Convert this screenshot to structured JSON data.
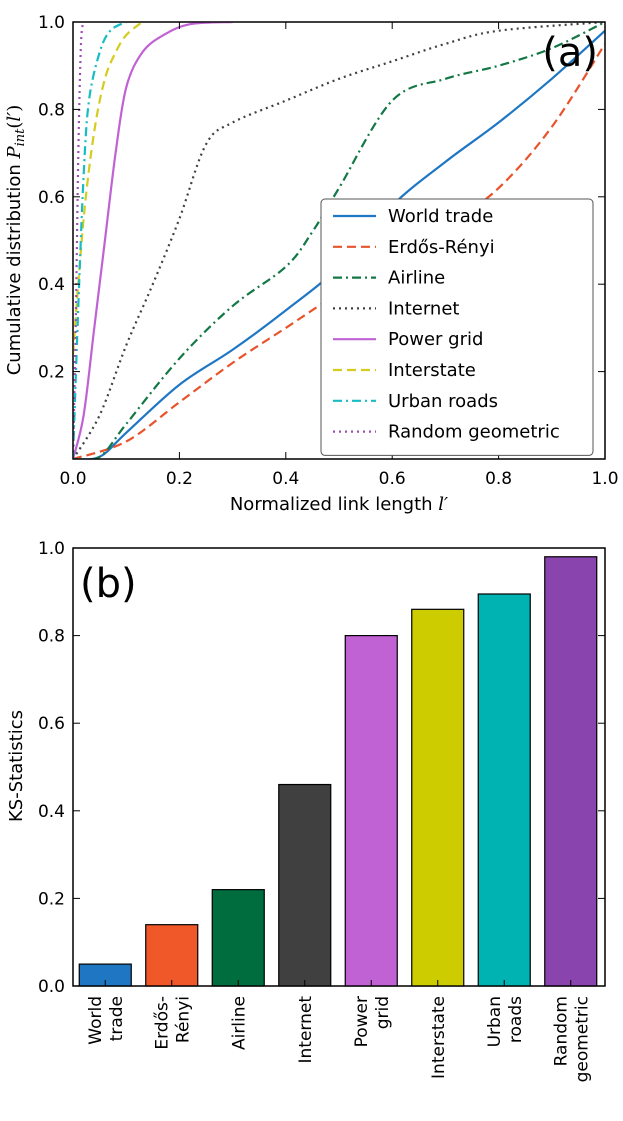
{
  "chart_data": [
    {
      "type": "line",
      "panel_label": "(a)",
      "xlabel": "Normalized link length l′",
      "ylabel": "Cumulative distribution P_int(l′)",
      "xlim": [
        0.0,
        1.0
      ],
      "ylim": [
        0.0,
        1.0
      ],
      "xticks": [
        "0.0",
        "0.2",
        "0.4",
        "0.6",
        "0.8",
        "1.0"
      ],
      "yticks": [
        "0.2",
        "0.4",
        "0.6",
        "0.8",
        "1.0"
      ],
      "grid": false,
      "legend_position": "lower-right",
      "series": [
        {
          "name": "World trade",
          "color": "#1f77c4",
          "dash": "solid",
          "points": [
            [
              0,
              0
            ],
            [
              0.05,
              0.005
            ],
            [
              0.1,
              0.06
            ],
            [
              0.2,
              0.17
            ],
            [
              0.3,
              0.25
            ],
            [
              0.4,
              0.34
            ],
            [
              0.5,
              0.44
            ],
            [
              0.6,
              0.58
            ],
            [
              0.7,
              0.68
            ],
            [
              0.8,
              0.77
            ],
            [
              0.9,
              0.87
            ],
            [
              1.0,
              0.98
            ]
          ]
        },
        {
          "name": "Erdős-Rényi",
          "color": "#e8532b",
          "dash": "dashed",
          "points": [
            [
              0,
              0
            ],
            [
              0.1,
              0.04
            ],
            [
              0.2,
              0.13
            ],
            [
              0.3,
              0.22
            ],
            [
              0.4,
              0.3
            ],
            [
              0.5,
              0.38
            ],
            [
              0.6,
              0.45
            ],
            [
              0.7,
              0.53
            ],
            [
              0.8,
              0.62
            ],
            [
              0.9,
              0.76
            ],
            [
              1.0,
              0.95
            ]
          ]
        },
        {
          "name": "Airline",
          "color": "#137845",
          "dash": "dashdot",
          "points": [
            [
              0,
              0
            ],
            [
              0.05,
              0.005
            ],
            [
              0.1,
              0.08
            ],
            [
              0.2,
              0.23
            ],
            [
              0.3,
              0.35
            ],
            [
              0.4,
              0.44
            ],
            [
              0.45,
              0.52
            ],
            [
              0.5,
              0.62
            ],
            [
              0.6,
              0.82
            ],
            [
              0.7,
              0.87
            ],
            [
              0.8,
              0.9
            ],
            [
              0.9,
              0.94
            ],
            [
              1.0,
              1.0
            ]
          ]
        },
        {
          "name": "Internet",
          "color": "#404040",
          "dash": "dotted",
          "points": [
            [
              0,
              0
            ],
            [
              0.05,
              0.1
            ],
            [
              0.1,
              0.26
            ],
            [
              0.15,
              0.4
            ],
            [
              0.2,
              0.55
            ],
            [
              0.25,
              0.72
            ],
            [
              0.3,
              0.77
            ],
            [
              0.4,
              0.82
            ],
            [
              0.5,
              0.87
            ],
            [
              0.6,
              0.91
            ],
            [
              0.7,
              0.95
            ],
            [
              0.8,
              0.98
            ],
            [
              1.0,
              1.0
            ]
          ]
        },
        {
          "name": "Power grid",
          "color": "#c062d4",
          "dash": "solid",
          "points": [
            [
              0,
              0
            ],
            [
              0.02,
              0.1
            ],
            [
              0.04,
              0.3
            ],
            [
              0.06,
              0.5
            ],
            [
              0.08,
              0.7
            ],
            [
              0.1,
              0.85
            ],
            [
              0.13,
              0.93
            ],
            [
              0.17,
              0.97
            ],
            [
              0.22,
              0.995
            ],
            [
              0.3,
              1.0
            ]
          ]
        },
        {
          "name": "Interstate",
          "color": "#d4cc1f",
          "dash": "dashed",
          "points": [
            [
              0,
              0.24
            ],
            [
              0.02,
              0.55
            ],
            [
              0.04,
              0.75
            ],
            [
              0.06,
              0.87
            ],
            [
              0.08,
              0.93
            ],
            [
              0.1,
              0.97
            ],
            [
              0.13,
              1.0
            ]
          ]
        },
        {
          "name": "Urban roads",
          "color": "#17bcc4",
          "dash": "dashdot",
          "points": [
            [
              0,
              0.0
            ],
            [
              0.01,
              0.35
            ],
            [
              0.02,
              0.65
            ],
            [
              0.03,
              0.82
            ],
            [
              0.05,
              0.93
            ],
            [
              0.07,
              0.98
            ],
            [
              0.1,
              1.0
            ]
          ]
        },
        {
          "name": "Random geometric",
          "color": "#9a4fb4",
          "dash": "dotted",
          "points": [
            [
              0,
              0
            ],
            [
              0.005,
              0.3
            ],
            [
              0.01,
              0.7
            ],
            [
              0.015,
              0.95
            ],
            [
              0.02,
              1.0
            ]
          ]
        }
      ]
    },
    {
      "type": "bar",
      "panel_label": "(b)",
      "ylabel": "KS-Statistics",
      "ylim": [
        0.0,
        1.0
      ],
      "yticks": [
        "0.0",
        "0.2",
        "0.4",
        "0.6",
        "0.8",
        "1.0"
      ],
      "categories": [
        [
          "World",
          "trade"
        ],
        [
          "Erdős-",
          "Rényi"
        ],
        [
          "Airline"
        ],
        [
          "Internet"
        ],
        [
          "Power",
          "grid"
        ],
        [
          "Interstate"
        ],
        [
          "Urban",
          "roads"
        ],
        [
          "Random",
          "geometric"
        ]
      ],
      "values": [
        0.05,
        0.14,
        0.22,
        0.46,
        0.8,
        0.86,
        0.895,
        0.98
      ],
      "colors": [
        "#1f77c4",
        "#f0582a",
        "#006d3f",
        "#404040",
        "#c062d4",
        "#cccc00",
        "#00b3b3",
        "#8a44ad"
      ]
    }
  ]
}
